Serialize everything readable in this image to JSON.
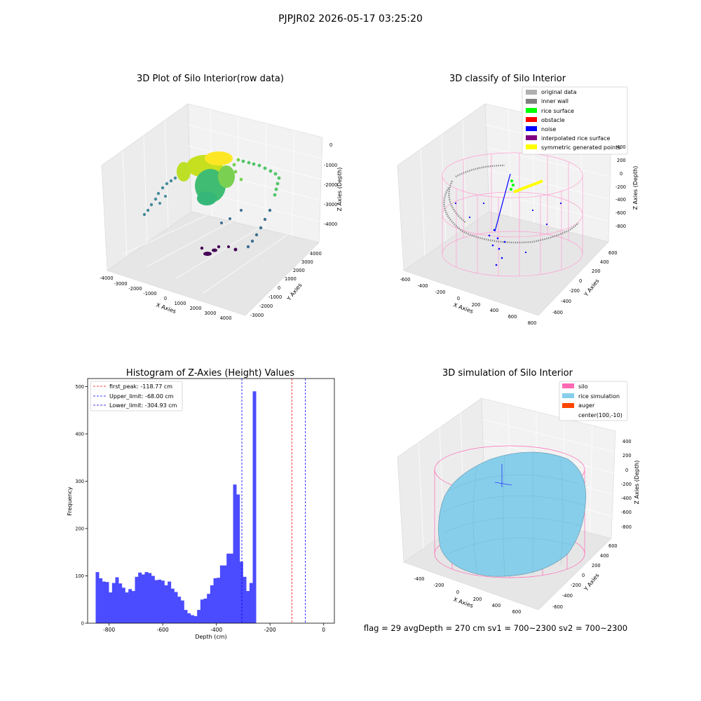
{
  "figure": {
    "suptitle": "PJPJR02 2026-05-17 03:25:20",
    "footer": "flag = 29  avgDepth = 270 cm  sv1 = 700~2300  sv2 = 700~2300"
  },
  "colors": {
    "histogram_bar": "#4b4bff",
    "first_peak_line": "#ff0000",
    "limit_lines": "#0000ff",
    "silo": "#ff69b4",
    "rice_simulation": "#87ceeb",
    "auger": "#ff4500",
    "original_data": "#b0b0b0",
    "inner_wall": "#808080",
    "rice_surface": "#00ff00",
    "obstacle": "#ff0000",
    "noise": "#0000ff",
    "interpolated_rice_surface": "#800080",
    "symmetric_generated_points": "#ffff00",
    "pane_light": "#f2f2f2",
    "pane_mid": "#e6e6e6",
    "pane_dark": "#ececec"
  },
  "chart_data": [
    {
      "type": "scatter",
      "title": "3D Plot of Silo Interior(row data)",
      "xlabel": "X Axies",
      "ylabel": "Y Axies",
      "zlabel": "Z Axies (Depth)",
      "x_ticks": [
        "-4000",
        "-3000",
        "-2000",
        "-1000",
        "0",
        "1000",
        "2000",
        "3000",
        "4000"
      ],
      "y_ticks": [
        "-3000",
        "-2000",
        "-1000",
        "0",
        "1000",
        "2000",
        "3000",
        "4000"
      ],
      "z_ticks": [
        "0",
        "-1000",
        "-2000",
        "-3000",
        "-4000"
      ],
      "colormap": "viridis"
    },
    {
      "type": "scatter",
      "title": "3D classify of Silo Interior",
      "xlabel": "X Axies",
      "ylabel": "Y Axies",
      "zlabel": "Z Axies (Depth)",
      "x_ticks": [
        "-600",
        "-400",
        "-200",
        "0",
        "200",
        "400",
        "600",
        "800"
      ],
      "y_ticks": [
        "-600",
        "-400",
        "-200",
        "0",
        "200",
        "400",
        "600"
      ],
      "z_ticks": [
        "400",
        "200",
        "0",
        "-200",
        "-400",
        "-600",
        "-800"
      ],
      "legend": [
        "original data",
        "inner wall",
        "rice surface",
        "obstacle",
        "noise",
        "interpolated rice surface",
        "symmetric generated points"
      ],
      "legend_position": "top-right"
    },
    {
      "type": "bar",
      "title": "Histogram of Z-Axies (Height) Values",
      "xlabel": "Depth (cm)",
      "ylabel": "Frequency",
      "x_ticks": [
        "-800",
        "-600",
        "-400",
        "-200",
        "0"
      ],
      "y_ticks": [
        "0",
        "100",
        "200",
        "300",
        "400",
        "500"
      ],
      "xlim": [
        -880,
        40
      ],
      "ylim": [
        0,
        517
      ],
      "bin_start": -850,
      "bin_width": 12.2,
      "values": [
        108,
        95,
        88,
        87,
        65,
        85,
        97,
        84,
        75,
        65,
        72,
        68,
        98,
        107,
        103,
        108,
        106,
        100,
        91,
        92,
        90,
        80,
        88,
        73,
        66,
        56,
        48,
        28,
        21,
        17,
        15,
        28,
        50,
        52,
        62,
        80,
        95,
        96,
        122,
        122,
        147,
        147,
        293,
        272,
        130,
        98,
        68,
        85,
        490
      ],
      "lines": [
        {
          "label": "first_peak: -118.77 cm",
          "x": -118.77,
          "style": "red"
        },
        {
          "label": "Upper_limit: -68.00 cm",
          "x": -68.0,
          "style": "blue"
        },
        {
          "label": "Lower_limit: -304.93 cm",
          "x": -304.93,
          "style": "blue"
        }
      ],
      "legend_position": "top-left",
      "grid": false
    },
    {
      "type": "area",
      "title": "3D simulation of Silo Interior",
      "xlabel": "X Axies",
      "ylabel": "Y Axies",
      "zlabel": "Z Axies (Depth)",
      "x_ticks": [
        "-400",
        "-200",
        "0",
        "200",
        "400",
        "600"
      ],
      "y_ticks": [
        "-600",
        "-400",
        "-200",
        "0",
        "200",
        "400",
        "600"
      ],
      "z_ticks": [
        "400",
        "200",
        "0",
        "-200",
        "-400",
        "-600",
        "-800"
      ],
      "legend": [
        "silo",
        "rice simulation",
        "auger",
        "center(100,-10)"
      ],
      "legend_position": "top-right"
    }
  ]
}
